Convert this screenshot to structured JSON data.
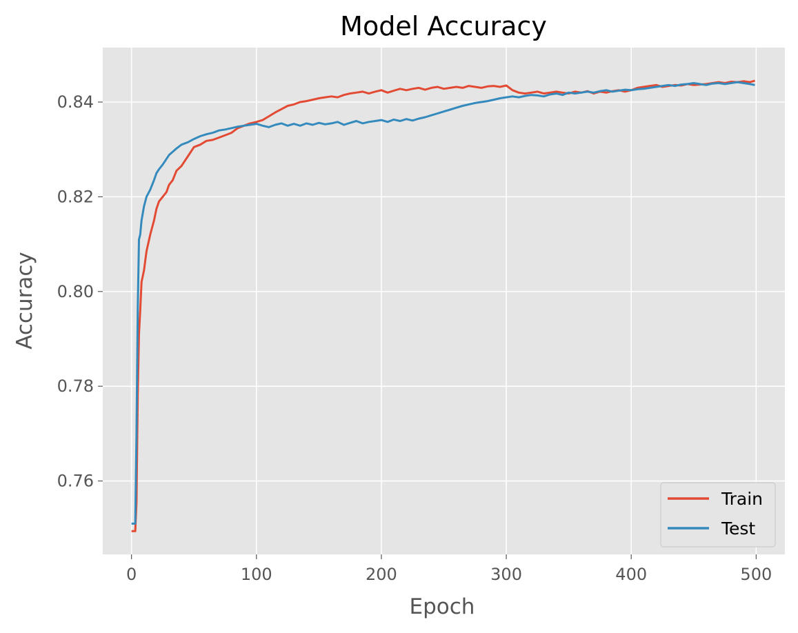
{
  "chart_data": {
    "type": "line",
    "title": "Model Accuracy",
    "xlabel": "Epoch",
    "ylabel": "Accuracy",
    "xlim": [
      -23,
      523
    ],
    "ylim": [
      0.7445,
      0.8515
    ],
    "xticks": [
      0,
      100,
      200,
      300,
      400,
      500
    ],
    "xtick_labels": [
      "0",
      "100",
      "200",
      "300",
      "400",
      "500"
    ],
    "yticks": [
      0.76,
      0.78,
      0.8,
      0.82,
      0.84
    ],
    "ytick_labels": [
      "0.76",
      "0.78",
      "0.80",
      "0.82",
      "0.84"
    ],
    "grid": true,
    "legend_position": "lower-right",
    "series": [
      {
        "name": "Train",
        "color": "#E24A33",
        "x": [
          0,
          1,
          2,
          3,
          4,
          5,
          6,
          7,
          8,
          10,
          12,
          15,
          18,
          20,
          22,
          25,
          28,
          30,
          33,
          36,
          40,
          45,
          50,
          55,
          60,
          65,
          70,
          75,
          80,
          85,
          90,
          95,
          100,
          105,
          110,
          115,
          120,
          125,
          130,
          135,
          140,
          145,
          150,
          155,
          160,
          165,
          170,
          175,
          180,
          185,
          190,
          195,
          200,
          205,
          210,
          215,
          220,
          225,
          230,
          235,
          240,
          245,
          250,
          255,
          260,
          265,
          270,
          275,
          280,
          285,
          290,
          295,
          300,
          305,
          310,
          315,
          320,
          325,
          330,
          335,
          340,
          345,
          350,
          355,
          360,
          365,
          370,
          375,
          380,
          385,
          390,
          395,
          400,
          405,
          410,
          415,
          420,
          425,
          430,
          435,
          440,
          445,
          450,
          455,
          460,
          465,
          470,
          475,
          480,
          485,
          490,
          495,
          499
        ],
        "values": [
          0.7494,
          0.7494,
          0.7494,
          0.7494,
          0.7555,
          0.778,
          0.791,
          0.796,
          0.802,
          0.8045,
          0.8085,
          0.812,
          0.815,
          0.8175,
          0.819,
          0.82,
          0.821,
          0.8225,
          0.8235,
          0.8255,
          0.8265,
          0.8285,
          0.8305,
          0.831,
          0.8318,
          0.832,
          0.8325,
          0.833,
          0.8335,
          0.8345,
          0.835,
          0.8355,
          0.8358,
          0.8362,
          0.837,
          0.8378,
          0.8385,
          0.8392,
          0.8395,
          0.84,
          0.8402,
          0.8405,
          0.8408,
          0.841,
          0.8412,
          0.841,
          0.8415,
          0.8418,
          0.842,
          0.8422,
          0.8418,
          0.8422,
          0.8425,
          0.842,
          0.8424,
          0.8428,
          0.8425,
          0.8428,
          0.843,
          0.8426,
          0.843,
          0.8432,
          0.8428,
          0.843,
          0.8432,
          0.843,
          0.8434,
          0.8432,
          0.843,
          0.8433,
          0.8434,
          0.8432,
          0.8435,
          0.8425,
          0.842,
          0.8418,
          0.842,
          0.8422,
          0.8418,
          0.842,
          0.8422,
          0.842,
          0.8418,
          0.8422,
          0.842,
          0.8423,
          0.8418,
          0.8422,
          0.842,
          0.8423,
          0.8425,
          0.8422,
          0.8425,
          0.843,
          0.8432,
          0.8434,
          0.8436,
          0.8432,
          0.8434,
          0.8436,
          0.8435,
          0.8438,
          0.8436,
          0.8437,
          0.8438,
          0.844,
          0.8442,
          0.844,
          0.8443,
          0.8442,
          0.8444,
          0.8442,
          0.8445
        ]
      },
      {
        "name": "Test",
        "color": "#348ABD",
        "x": [
          0,
          1,
          2,
          3,
          4,
          5,
          6,
          7,
          8,
          10,
          12,
          15,
          18,
          20,
          22,
          25,
          28,
          30,
          33,
          36,
          40,
          45,
          50,
          55,
          60,
          65,
          70,
          75,
          80,
          85,
          90,
          95,
          100,
          105,
          110,
          115,
          120,
          125,
          130,
          135,
          140,
          145,
          150,
          155,
          160,
          165,
          170,
          175,
          180,
          185,
          190,
          195,
          200,
          205,
          210,
          215,
          220,
          225,
          230,
          235,
          240,
          245,
          250,
          255,
          260,
          265,
          270,
          275,
          280,
          285,
          290,
          295,
          300,
          305,
          310,
          315,
          320,
          325,
          330,
          335,
          340,
          345,
          350,
          355,
          360,
          365,
          370,
          375,
          380,
          385,
          390,
          395,
          400,
          405,
          410,
          415,
          420,
          425,
          430,
          435,
          440,
          445,
          450,
          455,
          460,
          465,
          470,
          475,
          480,
          485,
          490,
          495,
          499
        ],
        "values": [
          0.751,
          0.751,
          0.751,
          0.751,
          0.77,
          0.796,
          0.811,
          0.812,
          0.815,
          0.818,
          0.82,
          0.8215,
          0.8235,
          0.825,
          0.8258,
          0.8268,
          0.828,
          0.8288,
          0.8295,
          0.8302,
          0.831,
          0.8315,
          0.8322,
          0.8328,
          0.8332,
          0.8335,
          0.834,
          0.8342,
          0.8345,
          0.8348,
          0.835,
          0.8352,
          0.8354,
          0.835,
          0.8347,
          0.8352,
          0.8355,
          0.835,
          0.8354,
          0.835,
          0.8355,
          0.8352,
          0.8356,
          0.8353,
          0.8355,
          0.8358,
          0.8352,
          0.8356,
          0.836,
          0.8355,
          0.8358,
          0.836,
          0.8362,
          0.8358,
          0.8363,
          0.836,
          0.8364,
          0.8361,
          0.8365,
          0.8368,
          0.8372,
          0.8376,
          0.838,
          0.8384,
          0.8388,
          0.8392,
          0.8395,
          0.8398,
          0.84,
          0.8402,
          0.8405,
          0.8408,
          0.841,
          0.8412,
          0.841,
          0.8413,
          0.8415,
          0.8414,
          0.8412,
          0.8416,
          0.8418,
          0.8415,
          0.842,
          0.8418,
          0.842,
          0.8422,
          0.842,
          0.8423,
          0.8425,
          0.8422,
          0.8424,
          0.8426,
          0.8425,
          0.8427,
          0.8428,
          0.843,
          0.8432,
          0.8434,
          0.8436,
          0.8434,
          0.8437,
          0.8438,
          0.844,
          0.8438,
          0.8436,
          0.8439,
          0.844,
          0.8438,
          0.844,
          0.8442,
          0.844,
          0.8438,
          0.8436
        ]
      }
    ]
  }
}
